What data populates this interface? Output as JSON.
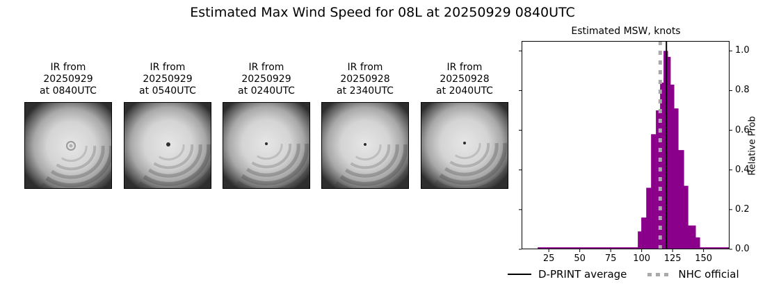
{
  "suptitle": "Estimated Max Wind Speed for 08L at 20250929 0840UTC",
  "panels": [
    {
      "line1": "IR from",
      "line2": "20250929",
      "line3": "at 0840UTC",
      "eye": "ragged"
    },
    {
      "line1": "IR from",
      "line2": "20250929",
      "line3": "at 0540UTC",
      "eye": "small"
    },
    {
      "line1": "IR from",
      "line2": "20250929",
      "line3": "at 0240UTC",
      "eye": "pinhole"
    },
    {
      "line1": "IR from",
      "line2": "20250928",
      "line3": "at 2340UTC",
      "eye": "pinhole"
    },
    {
      "line1": "IR from",
      "line2": "20250928",
      "line3": "at 2040UTC",
      "eye": "pinhole"
    }
  ],
  "chart_data": {
    "type": "bar",
    "title": "Estimated MSW, knots",
    "xlabel": "",
    "ylabel": "Relative Prob",
    "xlim": [
      3,
      171
    ],
    "ylim": [
      0,
      1.05
    ],
    "xticks": [
      25,
      50,
      75,
      100,
      125,
      150
    ],
    "yticks": [
      0.0,
      0.2,
      0.4,
      0.6,
      0.8,
      1.0
    ],
    "ytick_labels": [
      "0.0",
      "0.2",
      "0.4",
      "0.6",
      "0.8",
      "1.0"
    ],
    "yaxis_side": "right",
    "grid": false,
    "bar_color": "#8b008b",
    "bins": [
      {
        "x0": 16.0,
        "x1": 96.9,
        "value": 0.01
      },
      {
        "x0": 96.9,
        "x1": 99.7,
        "value": 0.09
      },
      {
        "x0": 99.7,
        "x1": 103.7,
        "value": 0.16
      },
      {
        "x0": 103.7,
        "x1": 107.6,
        "value": 0.31
      },
      {
        "x0": 107.6,
        "x1": 111.5,
        "value": 0.58
      },
      {
        "x0": 111.5,
        "x1": 114.9,
        "value": 0.7
      },
      {
        "x0": 114.9,
        "x1": 117.7,
        "value": 0.84
      },
      {
        "x0": 117.7,
        "x1": 121.1,
        "value": 1.0
      },
      {
        "x0": 121.1,
        "x1": 123.3,
        "value": 0.97
      },
      {
        "x0": 123.3,
        "x1": 126.2,
        "value": 0.83
      },
      {
        "x0": 126.2,
        "x1": 129.6,
        "value": 0.71
      },
      {
        "x0": 129.6,
        "x1": 134.1,
        "value": 0.5
      },
      {
        "x0": 134.1,
        "x1": 137.5,
        "value": 0.32
      },
      {
        "x0": 137.5,
        "x1": 143.6,
        "value": 0.12
      },
      {
        "x0": 143.6,
        "x1": 147.0,
        "value": 0.06
      },
      {
        "x0": 147.0,
        "x1": 170.6,
        "value": 0.01
      }
    ],
    "lines": [
      {
        "name": "D-PRINT average",
        "x": 120,
        "color": "#000000",
        "style": "solid"
      },
      {
        "name": "NHC official",
        "x": 115,
        "color": "#aaaaaa",
        "style": "dotted"
      }
    ],
    "legend": {
      "position": "bottom",
      "entries": [
        "D-PRINT average",
        "NHC official"
      ]
    }
  },
  "legend": {
    "dprint": "D-PRINT average",
    "nhc": "NHC official"
  }
}
